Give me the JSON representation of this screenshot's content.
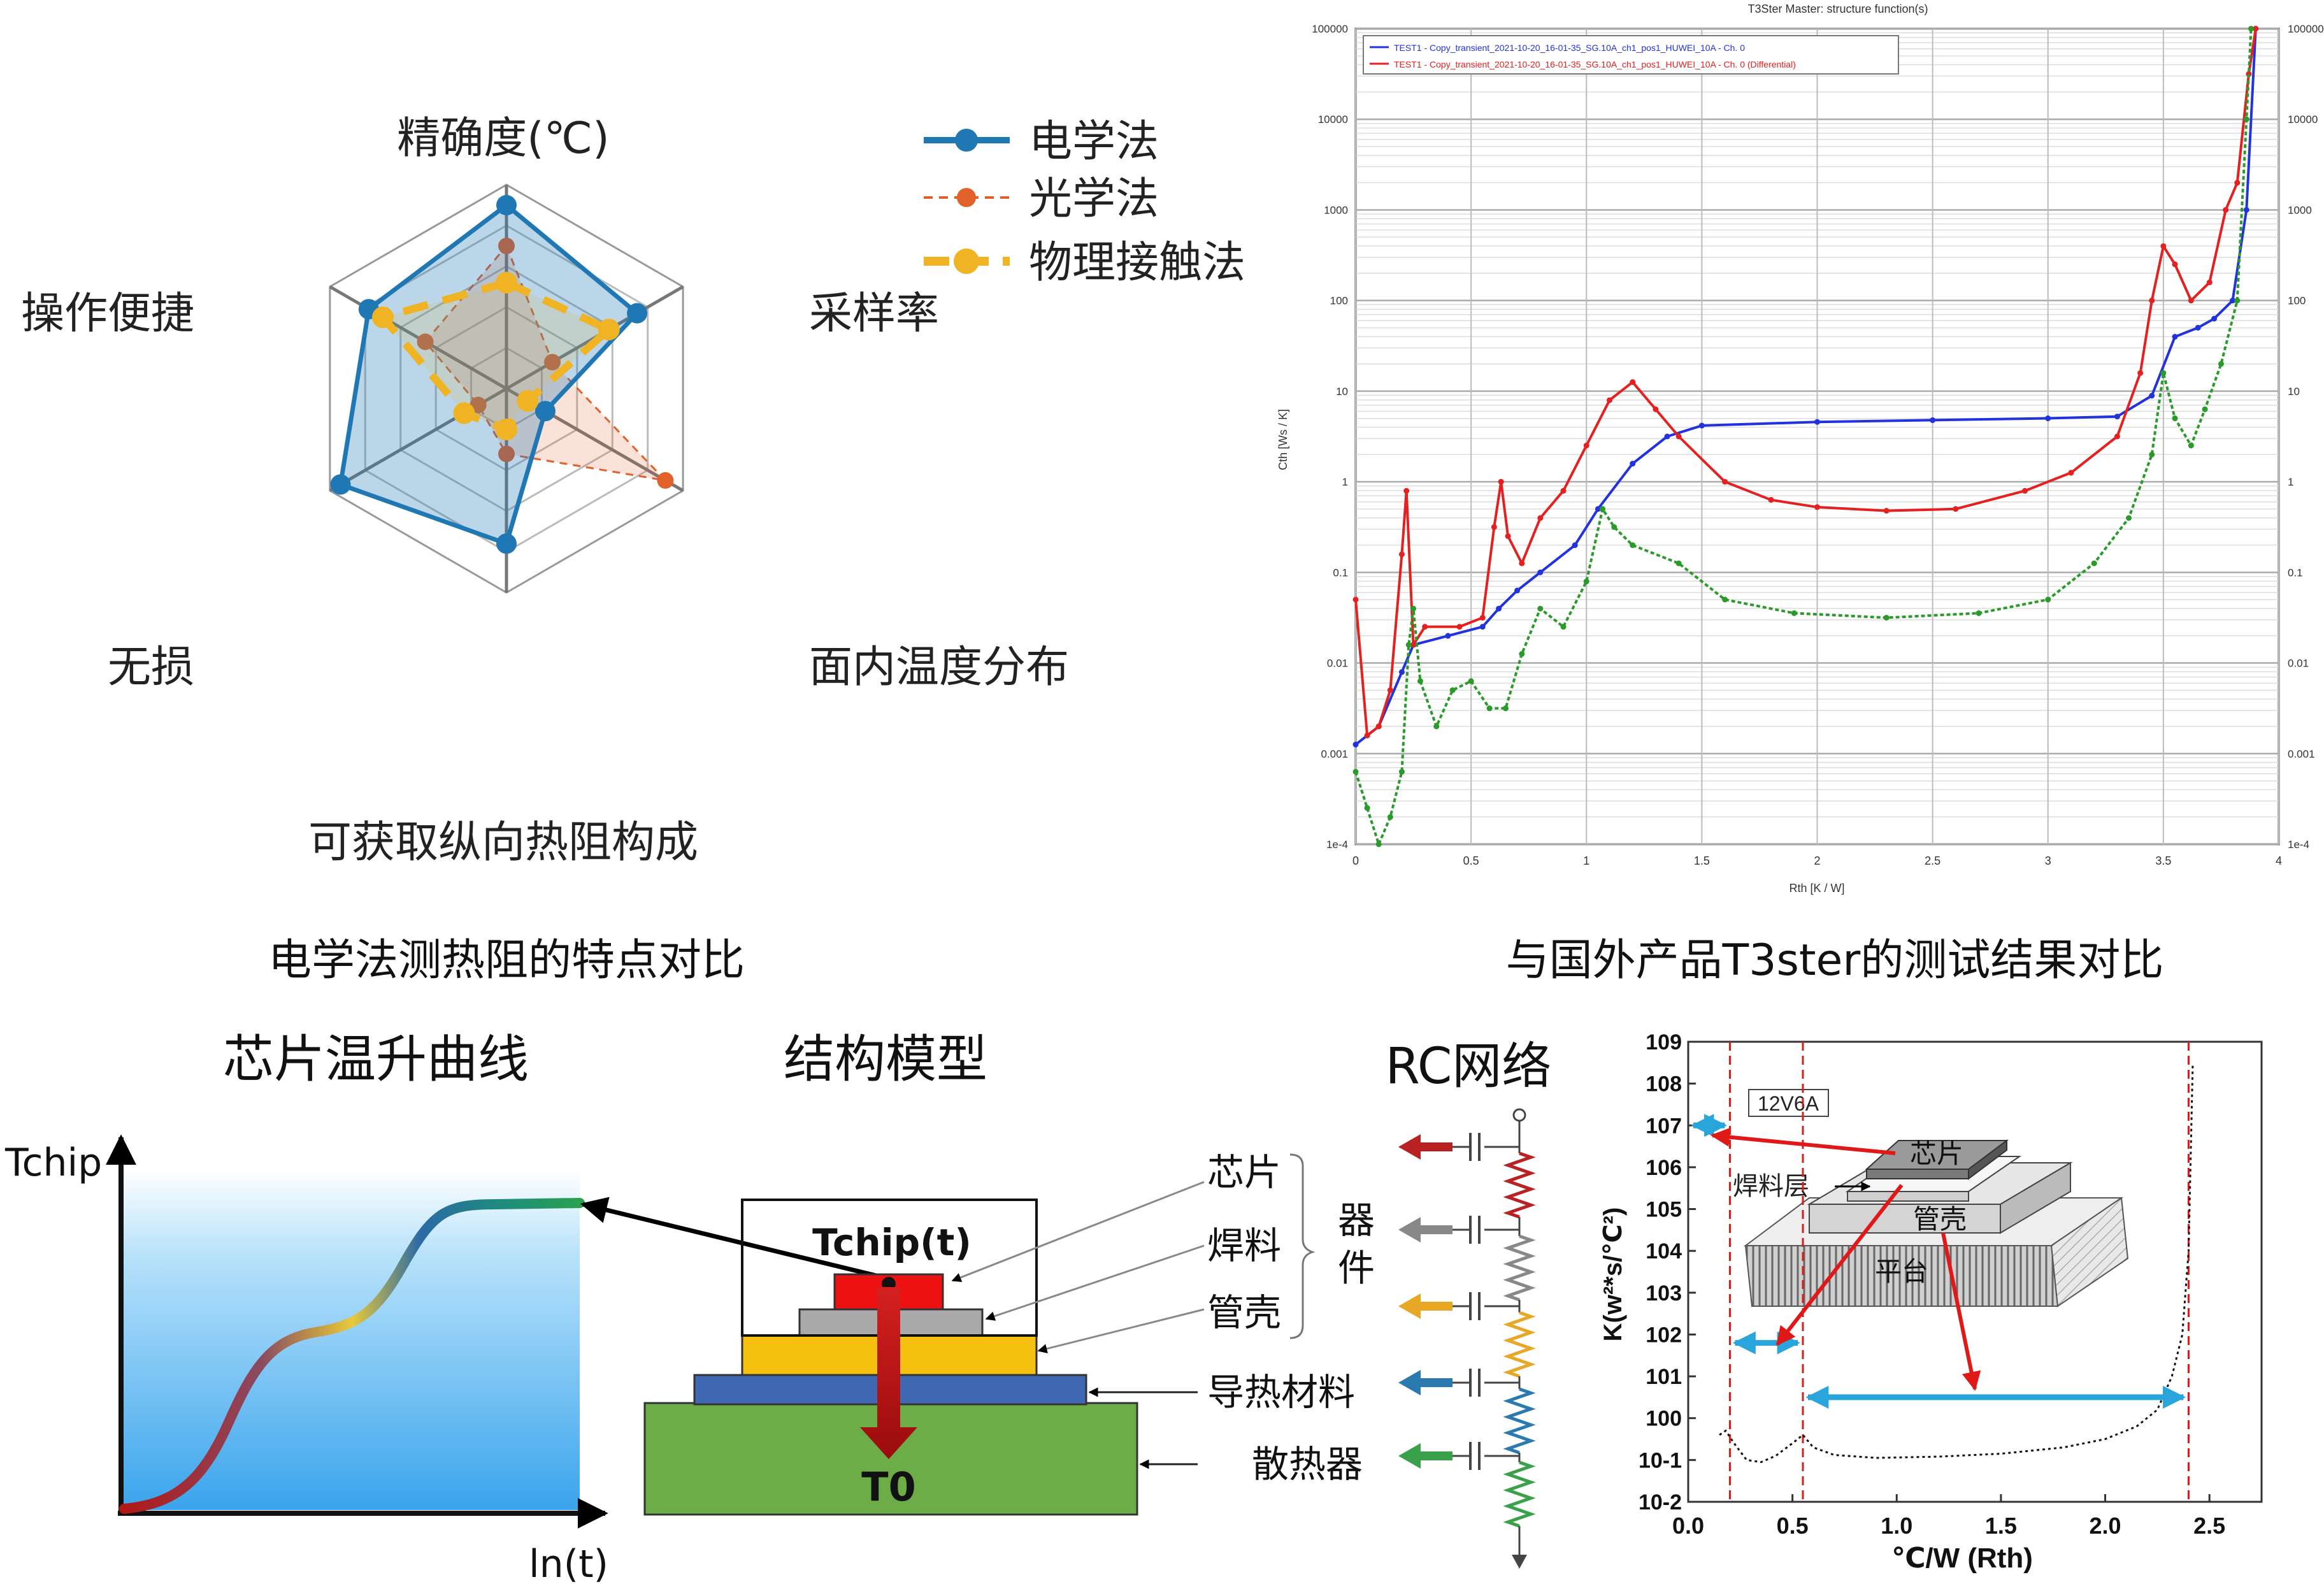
{
  "radar": {
    "axes": [
      "精确度(℃)",
      "采样率",
      "面内温度分布",
      "可获取纵向热阻构成",
      "无损",
      "操作便捷"
    ],
    "legend": [
      "电学法",
      "光学法",
      "物理接触法"
    ],
    "caption": "电学法测热阻的特点对比",
    "chart_data": {
      "type": "radar",
      "categories": [
        "精确度(℃)",
        "采样率",
        "面内温度分布",
        "可获取纵向热阻构成",
        "无损",
        "操作便捷"
      ],
      "rmax": 5,
      "series": [
        {
          "name": "电学法",
          "values": [
            4.5,
            3.7,
            1.1,
            3.8,
            4.7,
            3.9
          ],
          "color": "#1f77b4"
        },
        {
          "name": "光学法",
          "values": [
            3.5,
            1.3,
            4.5,
            1.6,
            0.8,
            2.3
          ],
          "color": "#e2602a"
        },
        {
          "name": "物理接触法",
          "values": [
            2.6,
            2.9,
            0.6,
            1.0,
            1.2,
            3.5
          ],
          "color": "#f0b323"
        }
      ]
    }
  },
  "t3ster": {
    "title": "T3Ster Master: structure function(s)",
    "legend": [
      "TEST1 - Copy_transient_2021-10-20_16-01-35_SG.10A_ch1_pos1_HUWEI_10A - Ch. 0",
      "TEST1 - Copy_transient_2021-10-20_16-01-35_SG.10A_ch1_pos1_HUWEI_10A - Ch. 0 (Differential)"
    ],
    "xlabel": "Rth  [K / W]",
    "ylabel": "Cth  [Ws / K]",
    "xticks": [
      "0",
      "0.5",
      "1",
      "1.5",
      "2",
      "2.5",
      "3",
      "3.5",
      "4"
    ],
    "yticks": [
      "1e-4",
      "0.001",
      "0.01",
      "0.1",
      "1",
      "10",
      "100",
      "1000",
      "10000",
      "100000"
    ],
    "caption": "与国外产品T3ster的测试结果对比",
    "chart_data": {
      "type": "line",
      "xlim": [
        0,
        4
      ],
      "ylog10_lim": [
        -4,
        5
      ],
      "series": [
        {
          "name": "TEST1 - Copy_transient_2021-10-20_16-01-35_SG.10A_ch1_pos1_HUWEI_10A - Ch. 0",
          "color": "#2233dd",
          "points": [
            [
              0,
              -2.9
            ],
            [
              0.1,
              -2.7
            ],
            [
              0.2,
              -2.1
            ],
            [
              0.25,
              -1.8
            ],
            [
              0.4,
              -1.7
            ],
            [
              0.55,
              -1.6
            ],
            [
              0.62,
              -1.4
            ],
            [
              0.7,
              -1.2
            ],
            [
              0.8,
              -1.0
            ],
            [
              0.95,
              -0.7
            ],
            [
              1.05,
              -0.3
            ],
            [
              1.2,
              0.2
            ],
            [
              1.35,
              0.5
            ],
            [
              1.5,
              0.62
            ],
            [
              2.0,
              0.66
            ],
            [
              2.5,
              0.68
            ],
            [
              3.0,
              0.7
            ],
            [
              3.3,
              0.72
            ],
            [
              3.45,
              0.95
            ],
            [
              3.55,
              1.6
            ],
            [
              3.65,
              1.7
            ],
            [
              3.72,
              1.8
            ],
            [
              3.8,
              2.0
            ],
            [
              3.86,
              3.0
            ],
            [
              3.9,
              5.0
            ]
          ]
        },
        {
          "name": "TEST1 - Copy_transient_2021-10-20_16-01-35_SG.10A_ch1_pos1_HUWEI_10A - Ch. 0 (Differential)",
          "color": "#e42020",
          "points": [
            [
              0,
              -1.3
            ],
            [
              0.05,
              -2.8
            ],
            [
              0.1,
              -2.7
            ],
            [
              0.15,
              -2.3
            ],
            [
              0.2,
              -0.8
            ],
            [
              0.22,
              -0.1
            ],
            [
              0.25,
              -1.8
            ],
            [
              0.3,
              -1.6
            ],
            [
              0.45,
              -1.6
            ],
            [
              0.55,
              -1.5
            ],
            [
              0.6,
              -0.5
            ],
            [
              0.63,
              0.0
            ],
            [
              0.66,
              -0.6
            ],
            [
              0.72,
              -0.9
            ],
            [
              0.8,
              -0.4
            ],
            [
              0.9,
              -0.1
            ],
            [
              1.0,
              0.4
            ],
            [
              1.1,
              0.9
            ],
            [
              1.2,
              1.1
            ],
            [
              1.3,
              0.8
            ],
            [
              1.4,
              0.5
            ],
            [
              1.6,
              0.0
            ],
            [
              1.8,
              -0.2
            ],
            [
              2.0,
              -0.28
            ],
            [
              2.3,
              -0.32
            ],
            [
              2.6,
              -0.3
            ],
            [
              2.9,
              -0.1
            ],
            [
              3.1,
              0.1
            ],
            [
              3.3,
              0.5
            ],
            [
              3.4,
              1.2
            ],
            [
              3.45,
              2.0
            ],
            [
              3.5,
              2.6
            ],
            [
              3.55,
              2.4
            ],
            [
              3.62,
              2.0
            ],
            [
              3.7,
              2.2
            ],
            [
              3.77,
              3.0
            ],
            [
              3.82,
              3.3
            ],
            [
              3.87,
              4.5
            ],
            [
              3.9,
              5.0
            ]
          ]
        },
        {
          "color": "#2a9a2a",
          "points": [
            [
              0,
              -3.2
            ],
            [
              0.05,
              -3.6
            ],
            [
              0.1,
              -4.0
            ],
            [
              0.15,
              -3.7
            ],
            [
              0.2,
              -3.2
            ],
            [
              0.23,
              -1.8
            ],
            [
              0.25,
              -1.4
            ],
            [
              0.28,
              -2.2
            ],
            [
              0.35,
              -2.7
            ],
            [
              0.42,
              -2.3
            ],
            [
              0.5,
              -2.2
            ],
            [
              0.58,
              -2.5
            ],
            [
              0.65,
              -2.5
            ],
            [
              0.72,
              -1.9
            ],
            [
              0.8,
              -1.4
            ],
            [
              0.9,
              -1.6
            ],
            [
              1.0,
              -1.1
            ],
            [
              1.07,
              -0.3
            ],
            [
              1.12,
              -0.5
            ],
            [
              1.2,
              -0.7
            ],
            [
              1.4,
              -0.9
            ],
            [
              1.6,
              -1.3
            ],
            [
              1.9,
              -1.45
            ],
            [
              2.3,
              -1.5
            ],
            [
              2.7,
              -1.45
            ],
            [
              3.0,
              -1.3
            ],
            [
              3.2,
              -0.9
            ],
            [
              3.35,
              -0.4
            ],
            [
              3.45,
              0.3
            ],
            [
              3.5,
              1.2
            ],
            [
              3.55,
              0.7
            ],
            [
              3.62,
              0.4
            ],
            [
              3.68,
              0.8
            ],
            [
              3.75,
              1.3
            ],
            [
              3.82,
              2.0
            ],
            [
              3.86,
              4.0
            ],
            [
              3.88,
              5.0
            ]
          ]
        }
      ]
    }
  },
  "bottom": {
    "title_curve": "芯片温升曲线",
    "title_model": "结构模型",
    "title_rc": "RC网络",
    "tchip": "Tchip",
    "lnt": "ln(t)",
    "tchip_t": "Tchip(t)",
    "t0": "T0",
    "labels": {
      "chip": "芯片",
      "solder": "焊料",
      "case": "管壳",
      "device": "器件",
      "tim": "导热材料",
      "heatsink": "散热器"
    }
  },
  "kplot": {
    "box_label": "12V6A",
    "xlabel": "℃/W (Rth)",
    "ylabel": "K(w²*s/℃²)",
    "xticks": [
      "0.0",
      "0.5",
      "1.0",
      "1.5",
      "2.0",
      "2.5"
    ],
    "yticks": [
      "10-2",
      "10-1",
      "100",
      "101",
      "102",
      "103",
      "104",
      "105",
      "106",
      "107",
      "108",
      "109"
    ],
    "inset": {
      "chip": "芯片",
      "solder": "焊料层",
      "case": "管壳",
      "platform": "平台"
    },
    "chart_data": {
      "type": "line",
      "xlim": [
        0,
        2.75
      ],
      "ylog10_lim": [
        -2,
        9
      ],
      "vlines": [
        0.2,
        0.55,
        2.4
      ],
      "points": [
        [
          0.15,
          -0.4
        ],
        [
          0.18,
          -0.3
        ],
        [
          0.22,
          -0.6
        ],
        [
          0.28,
          -1.0
        ],
        [
          0.35,
          -1.05
        ],
        [
          0.42,
          -0.9
        ],
        [
          0.5,
          -0.6
        ],
        [
          0.55,
          -0.4
        ],
        [
          0.6,
          -0.7
        ],
        [
          0.7,
          -0.88
        ],
        [
          0.9,
          -0.95
        ],
        [
          1.2,
          -0.92
        ],
        [
          1.5,
          -0.85
        ],
        [
          1.8,
          -0.7
        ],
        [
          2.0,
          -0.5
        ],
        [
          2.15,
          -0.2
        ],
        [
          2.25,
          0.2
        ],
        [
          2.32,
          1.0
        ],
        [
          2.37,
          2.0
        ],
        [
          2.4,
          4.0
        ],
        [
          2.42,
          8.5
        ]
      ]
    }
  }
}
